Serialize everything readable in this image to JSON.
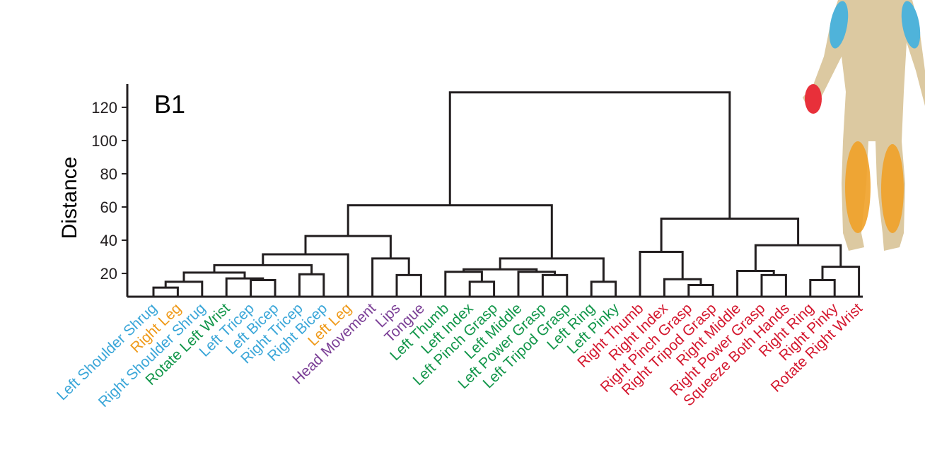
{
  "chart_data": {
    "type": "dendrogram",
    "panel_label": "B1",
    "y_label": "Distance",
    "leaves": [
      "Left Shoulder Shrug",
      "Right Leg",
      "Right Shoulder Shrug",
      "Rotate Left Wrist",
      "Left Tricep",
      "Left Bicep",
      "Right Tricep",
      "Right Bicep",
      "Left Leg",
      "Head Movement",
      "Lips",
      "Tongue",
      "Left Thumb",
      "Left Index",
      "Left Pinch Grasp",
      "Left Middle",
      "Left Power Grasp",
      "Left Tripod Grasp",
      "Left Ring",
      "Left Pinky",
      "Right Thumb",
      "Right Index",
      "Right Pinch Grasp",
      "Right Tripod Grasp",
      "Right Middle",
      "Right Power Grasp",
      "Squeeze Both Hands",
      "Right Ring",
      "Right Pinky",
      "Rotate Right Wrist"
    ],
    "leaf_colors": [
      "#3aa6d8",
      "#ef9a1a",
      "#3aa6d8",
      "#12964a",
      "#3aa6d8",
      "#3aa6d8",
      "#3aa6d8",
      "#3aa6d8",
      "#ef9a1a",
      "#7b3f96",
      "#7b3f96",
      "#7b3f96",
      "#12964a",
      "#12964a",
      "#12964a",
      "#12964a",
      "#12964a",
      "#12964a",
      "#12964a",
      "#12964a",
      "#d4172e",
      "#d4172e",
      "#d4172e",
      "#d4172e",
      "#d4172e",
      "#d4172e",
      "#d4172e",
      "#d4172e",
      "#d4172e",
      "#d4172e"
    ],
    "merges": [
      [
        0,
        1,
        11.5
      ],
      [
        30,
        2,
        15
      ],
      [
        4,
        5,
        16
      ],
      [
        3,
        32,
        17
      ],
      [
        31,
        33,
        20.5
      ],
      [
        6,
        7,
        19.5
      ],
      [
        34,
        35,
        25
      ],
      [
        36,
        8,
        31.5
      ],
      [
        10,
        11,
        19
      ],
      [
        9,
        38,
        29
      ],
      [
        37,
        39,
        42.5
      ],
      [
        13,
        14,
        15
      ],
      [
        12,
        41,
        21
      ],
      [
        16,
        17,
        19
      ],
      [
        15,
        43,
        21
      ],
      [
        42,
        44,
        22.5
      ],
      [
        18,
        19,
        15
      ],
      [
        45,
        46,
        29
      ],
      [
        40,
        47,
        61
      ],
      [
        22,
        23,
        13
      ],
      [
        21,
        49,
        16.5
      ],
      [
        20,
        50,
        33
      ],
      [
        25,
        26,
        19
      ],
      [
        24,
        52,
        21.5
      ],
      [
        27,
        28,
        16
      ],
      [
        54,
        29,
        24
      ],
      [
        53,
        55,
        37
      ],
      [
        51,
        56,
        53
      ],
      [
        48,
        57,
        129
      ]
    ],
    "ylim": [
      6,
      134
    ],
    "yticks": [
      20,
      40,
      60,
      80,
      100,
      120
    ],
    "line_color": "#231f20"
  }
}
